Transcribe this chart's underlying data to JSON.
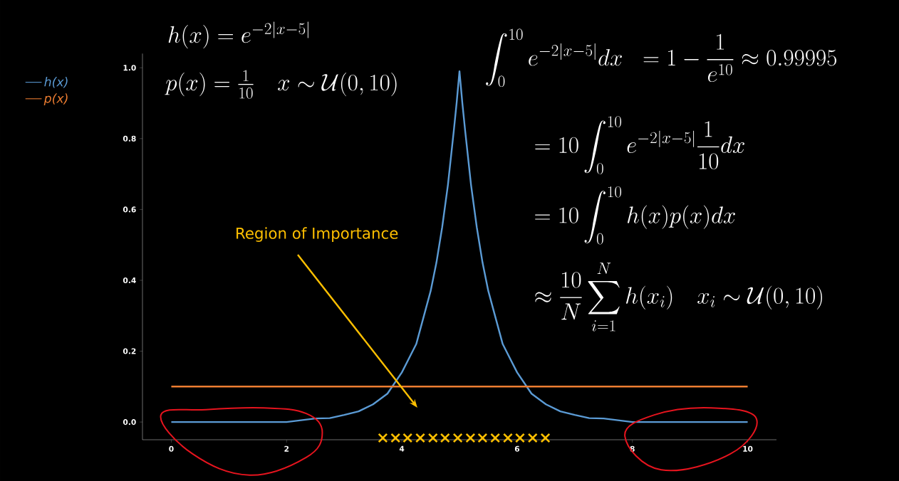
{
  "chart_data": {
    "type": "line",
    "xlim": [
      -0.5,
      10.5
    ],
    "ylim": [
      -0.05,
      1.04
    ],
    "xticks": [
      0,
      2,
      4,
      6,
      8,
      10
    ],
    "yticks": [
      {
        "value": 0,
        "label": "0.0"
      },
      {
        "value": 0.2,
        "label": "0.2"
      },
      {
        "value": 0.4,
        "label": "0.4"
      },
      {
        "value": 0.6,
        "label": "0.6"
      },
      {
        "value": 0.8,
        "label": "0.8"
      },
      {
        "value": 1.0,
        "label": "1.0"
      }
    ],
    "legend": "left",
    "series": [
      {
        "name": "h(x)",
        "color": "#5b9bd5",
        "x": [
          0,
          1,
          1.5,
          2,
          2.25,
          2.5,
          2.75,
          3,
          3.25,
          3.5,
          3.75,
          4,
          4.25,
          4.5,
          4.6,
          4.7,
          4.8,
          4.9,
          4.95,
          5,
          5.05,
          5.1,
          5.2,
          5.3,
          5.4,
          5.5,
          5.75,
          6,
          6.25,
          6.5,
          6.75,
          7,
          7.25,
          7.5,
          7.75,
          8,
          9,
          10
        ],
        "values": [
          0.0,
          0.0,
          0.0,
          0.0,
          0.005,
          0.01,
          0.011,
          0.02,
          0.03,
          0.05,
          0.08,
          0.14,
          0.22,
          0.37,
          0.45,
          0.55,
          0.67,
          0.82,
          0.9,
          0.99,
          0.9,
          0.82,
          0.67,
          0.55,
          0.45,
          0.37,
          0.22,
          0.14,
          0.08,
          0.05,
          0.03,
          0.02,
          0.011,
          0.01,
          0.005,
          0.0,
          0.0,
          0.0
        ]
      },
      {
        "name": "p(x)",
        "color": "#ed7d31",
        "x": [
          0,
          10
        ],
        "values": [
          0.1,
          0.1
        ]
      },
      {
        "type": "scatter",
        "marker": "cross",
        "color": "#ffc000",
        "x": [
          3.67,
          3.89,
          4.1,
          4.32,
          4.54,
          4.75,
          4.97,
          5.19,
          5.4,
          5.62,
          5.84,
          6.05,
          6.27,
          6.49
        ],
        "values": [
          -0.045,
          -0.045,
          -0.045,
          -0.045,
          -0.045,
          -0.045,
          -0.045,
          -0.045,
          -0.045,
          -0.045,
          -0.045,
          -0.045,
          -0.045,
          -0.045
        ]
      }
    ],
    "annotations": [
      "h(x) = e^{-2|x-5|}",
      "p(x) = \\frac{1}{10} \\quad x \\sim \\mathcal{U}(0,10)",
      "\\int_0^{10} e^{-2|x-5|}dx \\;\\; = 1 - \\frac{1}{e^{10}} \\approx 0.99995",
      "= 10\\int_0^{10} e^{-2|x-5|}\\frac{1}{10}dx",
      "= 10\\int_0^{10} h(x)p(x)dx",
      "\\approx \\frac{10}{N}\\sum_{i=1}^{N} h(x_i) \\quad x_i \\sim \\mathcal{U}(0,10)",
      {
        "text": "Region of Importance"
      }
    ]
  }
}
